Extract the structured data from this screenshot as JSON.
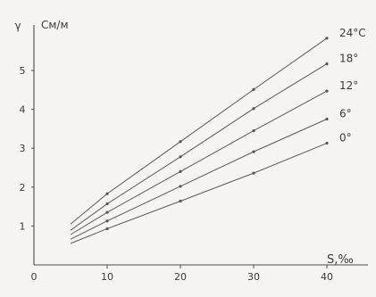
{
  "chart_data": {
    "type": "line",
    "ylabel_symbol": "γ",
    "ylabel": "Cм/м",
    "xlabel": "S,‰",
    "x_ticks": [
      0,
      10,
      20,
      30,
      40
    ],
    "y_ticks": [
      1,
      2,
      3,
      4,
      5
    ],
    "xlim": [
      0,
      44
    ],
    "ylim": [
      0,
      6
    ],
    "series": [
      {
        "name": "0°",
        "x": [
          5,
          10,
          20,
          30,
          40
        ],
        "values": [
          0.55,
          0.93,
          1.64,
          2.36,
          3.13
        ]
      },
      {
        "name": "6°",
        "x": [
          5,
          10,
          20,
          30,
          40
        ],
        "values": [
          0.66,
          1.13,
          2.02,
          2.91,
          3.75
        ]
      },
      {
        "name": "12°",
        "x": [
          5,
          10,
          20,
          30,
          40
        ],
        "values": [
          0.78,
          1.35,
          2.4,
          3.45,
          4.47
        ]
      },
      {
        "name": "18°",
        "x": [
          5,
          10,
          20,
          30,
          40
        ],
        "values": [
          0.89,
          1.57,
          2.78,
          4.02,
          5.17
        ]
      },
      {
        "name": "24°C",
        "x": [
          5,
          10,
          20,
          30,
          40
        ],
        "values": [
          1.05,
          1.83,
          3.17,
          4.51,
          5.83
        ]
      }
    ]
  }
}
